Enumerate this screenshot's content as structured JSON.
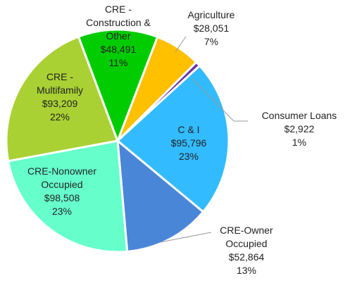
{
  "chart_data": {
    "type": "pie",
    "categories": [
      "Agriculture",
      "Consumer Loans",
      "C & I",
      "CRE-Owner Occupied",
      "CRE-Nonowner Occupied",
      "CRE - Multifamily",
      "CRE - Construction & Other"
    ],
    "values": [
      28051,
      2922,
      95796,
      52864,
      98508,
      93209,
      48491
    ],
    "value_labels": [
      "$28,051",
      "$2,922",
      "$95,796",
      "$52,864",
      "$98,508",
      "$93,209",
      "$48,491"
    ],
    "percent_labels": [
      "7%",
      "1%",
      "23%",
      "13%",
      "23%",
      "22%",
      "11%"
    ],
    "colors": [
      "#FFC000",
      "#7030A0",
      "#33BBFF",
      "#4A86D8",
      "#66FFCC",
      "#A9D134",
      "#00CC00"
    ]
  }
}
